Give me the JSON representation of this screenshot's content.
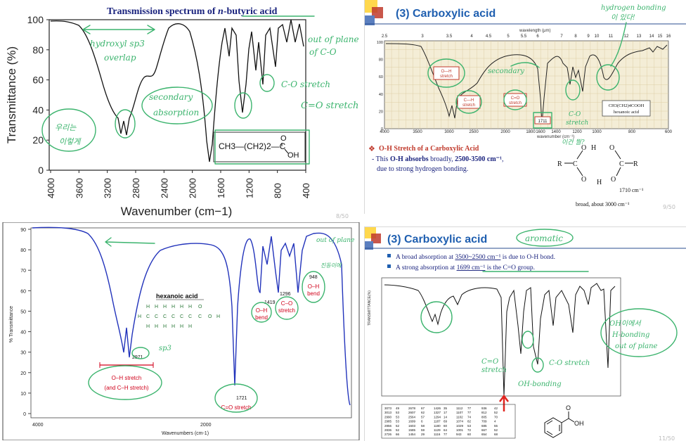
{
  "panels": {
    "top_left": {
      "title_prefix": "Transmission spectrum of ",
      "title_italic": "n",
      "title_suffix": "-butyric acid",
      "ylabel": "Transmittance (%)",
      "xlabel": "Wavenumber (cm−1)",
      "y_ticks": [
        "100",
        "80",
        "60",
        "40",
        "20",
        "0"
      ],
      "x_ticks": [
        "4000",
        "3600",
        "3200",
        "2800",
        "2400",
        "2000",
        "1600",
        "1200",
        "800",
        "400"
      ],
      "formula_main": "CH3—(CH2)2—C",
      "formula_o_top": "O",
      "formula_oh": "OH",
      "annotations": [
        "hydroxyl sp3",
        "overlap",
        "secondary",
        "absorption",
        "out of plane",
        "of C-O",
        "C-O stretch",
        "C=O stretch",
        "우리는",
        "이렇게"
      ],
      "page": "8/50"
    },
    "top_right": {
      "title": "(3) Carboxylic acid",
      "axis_top_label": "wavelength (μm)",
      "axis_bottom_label": "wavenumber (cm⁻¹)",
      "top_ticks": [
        "2.5",
        "3",
        "3.5",
        "4",
        "4.5",
        "5",
        "5.5",
        "6",
        "7",
        "8",
        "9",
        "10",
        "11",
        "12",
        "13",
        "14",
        "15",
        "16"
      ],
      "bottom_ticks": [
        "4000",
        "3500",
        "3000",
        "2500",
        "2000",
        "1800",
        "1600",
        "1400",
        "1200",
        "1000",
        "800",
        "600"
      ],
      "y_ticks": [
        "100",
        "80",
        "60",
        "40",
        "20",
        "0"
      ],
      "y_label": "% TRANSMITTANCE",
      "box_oh": "O—H\nstretch",
      "box_ch": "C—H\nstretch",
      "box_co": "C=O\nstretch",
      "box_1711": "1711",
      "compound_label_line1": "CH3(CH2)4COOH",
      "compound_label_line2": "hexanoic acid",
      "bullet_title": "O-H Stretch of a Carboxylic Acid",
      "bullet_line1_pre": "- This ",
      "bullet_line1_bold": "O-H absorbs",
      "bullet_line1_mid": " broadly, ",
      "bullet_line1_range": "2500-3500 cm⁻¹",
      "bullet_line1_end": ",",
      "bullet_line2": "due to strong hydrogen bonding.",
      "dimer_1710": "1710 cm⁻¹",
      "dimer_broad": "broad, about 3000 cm⁻¹",
      "annotations": [
        "hydrogen bonding",
        "이 있다!",
        "secondary",
        "C-O",
        "stretch",
        "이건 뭘?"
      ],
      "page": "9/50"
    },
    "bottom_left": {
      "ylabel": "% Transmittance",
      "xlabel": "Wavenumbers (cm-1)",
      "y_ticks": [
        "90",
        "80",
        "70",
        "60",
        "50",
        "40",
        "30",
        "20",
        "10",
        "0"
      ],
      "x_ticks": [
        "4000",
        "2000"
      ],
      "compound": "hexanoic acid",
      "peak_2971": "2971",
      "peak_1721": "1721",
      "peak_1419": "1419",
      "peak_1296": "1296",
      "peak_948": "948",
      "label_oh_stretch": "O–H stretch",
      "label_ch_stretch": "(and C–H stretch)",
      "label_co_stretch": "C=O stretch",
      "label_oh_bend": "O–H bend",
      "label_co": "C–O stretch",
      "label_oh_bend2": "O–H bend",
      "chain_h": "H",
      "chain_c": "C",
      "annotations": [
        "sp3",
        "out of plane",
        "진동이에"
      ]
    },
    "bottom_right": {
      "title": "(3) Carboxylic acid",
      "bullet1_pre": "A broad absorption at ",
      "bullet1_val": "3500~2500 cm⁻¹",
      "bullet1_post": " is due to O-H bond.",
      "bullet2_pre": "A strong absorption at ",
      "bullet2_val": "1699 cm⁻¹",
      "bullet2_post": " is the C=O group.",
      "table_rows": [
        [
          "3073",
          "49",
          "2678",
          "67",
          "1426",
          "35",
          "1112",
          "77",
          "936",
          "42"
        ],
        [
          "3013",
          "53",
          "2607",
          "62",
          "1327",
          "17",
          "1107",
          "77",
          "812",
          "52"
        ],
        [
          "2990",
          "53",
          "2564",
          "57",
          "1294",
          "14",
          "1102",
          "74",
          "805",
          "70"
        ],
        [
          "2985",
          "53",
          "1699",
          "6",
          "1187",
          "69",
          "1074",
          "82",
          "709",
          "4"
        ],
        [
          "2856",
          "52",
          "1603",
          "58",
          "1180",
          "60",
          "1029",
          "53",
          "685",
          "55"
        ],
        [
          "2836",
          "52",
          "1585",
          "59",
          "1129",
          "64",
          "1001",
          "72",
          "667",
          "52"
        ],
        [
          "2726",
          "66",
          "1454",
          "29",
          "1116",
          "77",
          "943",
          "60",
          "654",
          "68"
        ]
      ],
      "oh_label": "OH",
      "o_label": "O",
      "annotations": [
        "aromatic",
        "C=O",
        "stretch",
        "OH-bonding",
        "C-O stretch",
        "OH이에서",
        "H-bonding",
        "out of plane"
      ],
      "page": "11/50"
    }
  }
}
